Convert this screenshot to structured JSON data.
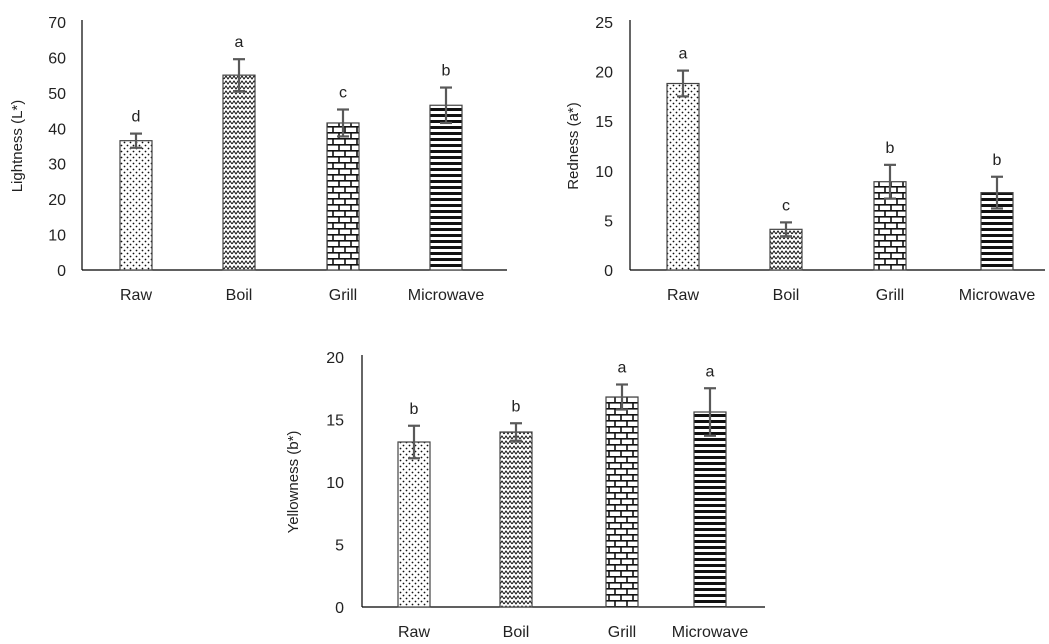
{
  "chart_data": [
    {
      "type": "bar",
      "ylabel": "Lightness (L*)",
      "categories": [
        "Raw",
        "Boil",
        "Grill",
        "Microwave"
      ],
      "values": [
        36.5,
        55,
        41.5,
        46.5
      ],
      "errors": [
        2,
        4.5,
        3.8,
        5
      ],
      "letters": [
        "d",
        "a",
        "c",
        "b"
      ],
      "ylim": [
        0,
        70
      ],
      "yticks": [
        0,
        10,
        20,
        30,
        40,
        50,
        60,
        70
      ],
      "patterns": [
        "dots",
        "zigzag",
        "brick",
        "hlines"
      ],
      "grid": false
    },
    {
      "type": "bar",
      "ylabel": "Redness (a*)",
      "categories": [
        "Raw",
        "Boil",
        "Grill",
        "Microwave"
      ],
      "values": [
        18.8,
        4.1,
        8.9,
        7.8
      ],
      "errors": [
        1.3,
        0.7,
        1.7,
        1.6
      ],
      "letters": [
        "a",
        "c",
        "b",
        "b"
      ],
      "ylim": [
        0,
        25
      ],
      "yticks": [
        0,
        5,
        10,
        15,
        20,
        25
      ],
      "patterns": [
        "dots",
        "zigzag",
        "brick",
        "hlines"
      ],
      "grid": false
    },
    {
      "type": "bar",
      "ylabel": "Yellowness (b*)",
      "categories": [
        "Raw",
        "Boil",
        "Grill",
        "Microwave"
      ],
      "values": [
        13.2,
        14,
        16.8,
        15.6
      ],
      "errors": [
        1.3,
        0.7,
        1,
        1.9
      ],
      "letters": [
        "b",
        "b",
        "a",
        "a"
      ],
      "ylim": [
        0,
        20
      ],
      "yticks": [
        0,
        5,
        10,
        15,
        20
      ],
      "patterns": [
        "dots",
        "zigzag",
        "brick",
        "hlines"
      ],
      "grid": false
    }
  ]
}
